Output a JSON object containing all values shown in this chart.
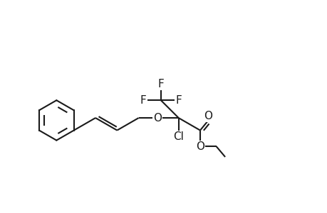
{
  "background_color": "#ffffff",
  "line_color": "#1a1a1a",
  "line_width": 1.5,
  "font_size": 11,
  "figsize": [
    4.6,
    3.0
  ],
  "dpi": 100,
  "xlim": [
    0,
    9.2
  ],
  "ylim": [
    0,
    6.0
  ]
}
